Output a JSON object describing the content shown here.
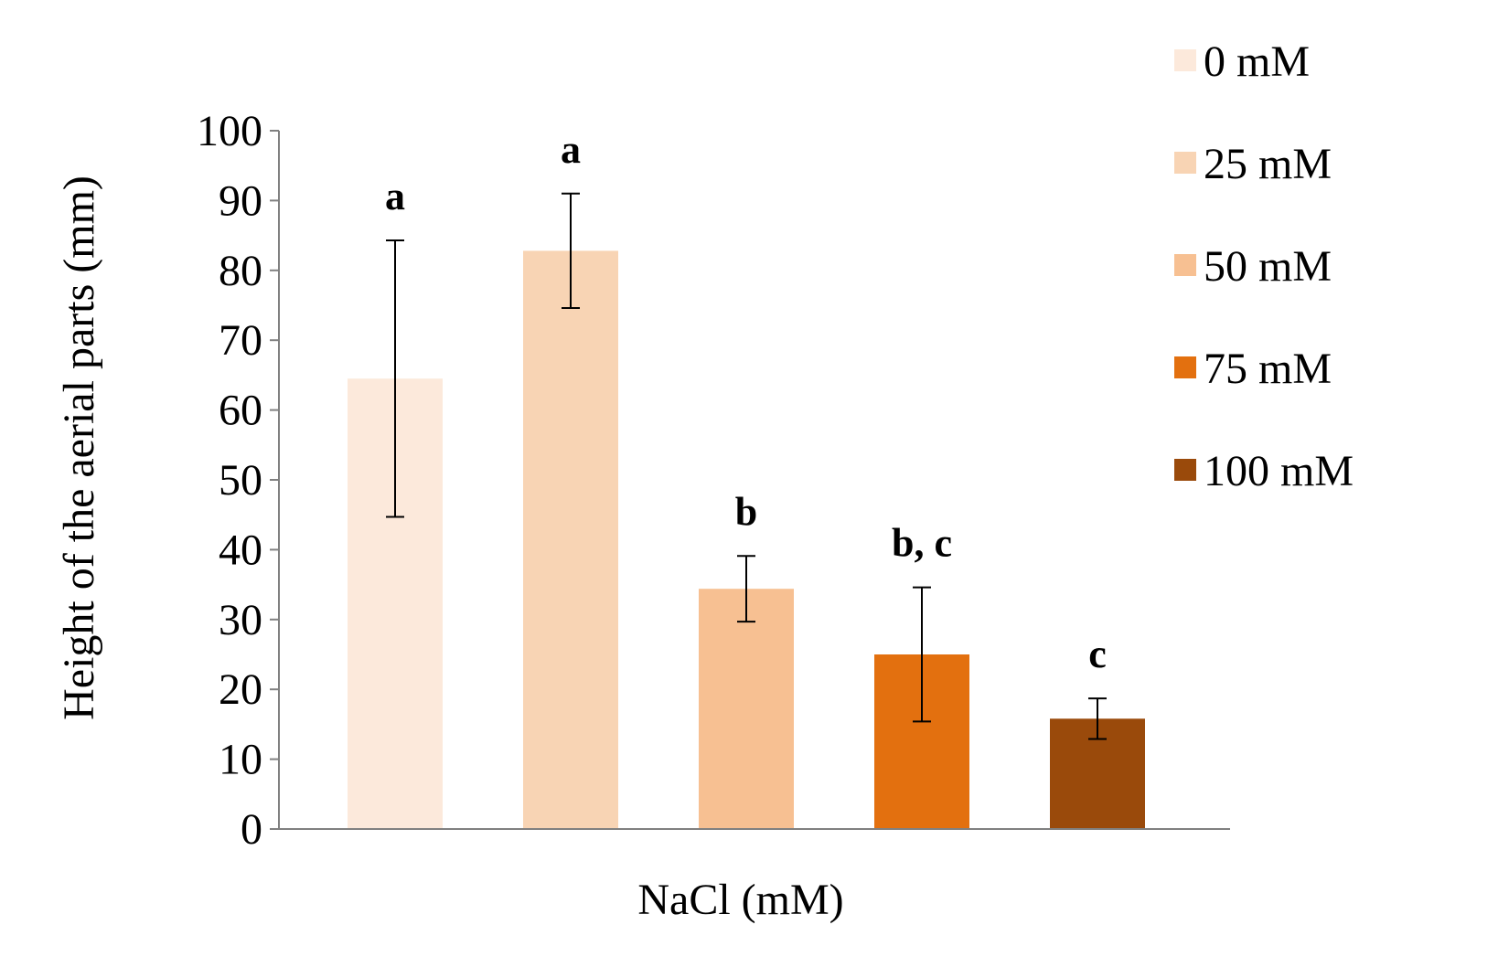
{
  "chart_data": {
    "type": "bar",
    "title": "",
    "xlabel": "NaCl (mM)",
    "ylabel": "Height of the aerial parts (mm)",
    "ylim": [
      0,
      100
    ],
    "ytick_step": 10,
    "yticks": [
      "0",
      "10",
      "20",
      "30",
      "40",
      "50",
      "60",
      "70",
      "80",
      "90",
      "100"
    ],
    "grid": false,
    "legend_position": "top-right",
    "series": [
      {
        "name": "0 mM",
        "value": 64.5,
        "error": 19.8,
        "significance": "a",
        "color": "#FCE9DB"
      },
      {
        "name": "25 mM",
        "value": 82.8,
        "error": 8.2,
        "significance": "a",
        "color": "#F8D4B4"
      },
      {
        "name": "50 mM",
        "value": 34.4,
        "error": 4.7,
        "significance": "b",
        "color": "#F7C092"
      },
      {
        "name": "75 mM",
        "value": 25.0,
        "error": 9.6,
        "significance": "b, c",
        "color": "#E3700F"
      },
      {
        "name": "100 mM",
        "value": 15.8,
        "error": 2.9,
        "significance": "c",
        "color": "#9A4A0B"
      }
    ]
  },
  "colors": {
    "axis": "#808080",
    "error_bar": "#000000",
    "text": "#000000"
  }
}
